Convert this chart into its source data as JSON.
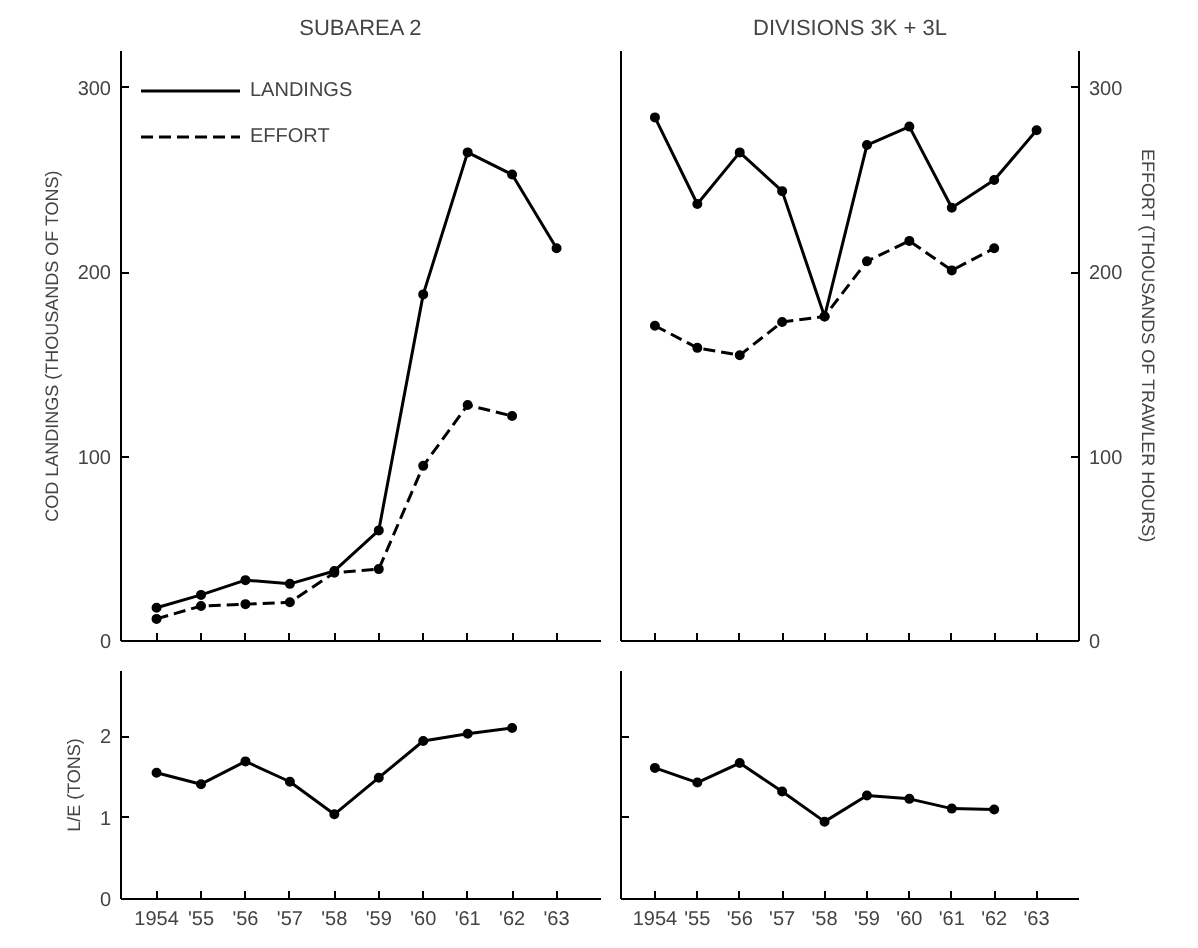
{
  "chart_data": [
    {
      "type": "line",
      "title": "SUBAREA 2",
      "ylabel": "COD LANDINGS (THOUSANDS OF TONS)",
      "categories": [
        null,
        null,
        null,
        null,
        null,
        null,
        null,
        null,
        null,
        null
      ],
      "series": [
        {
          "name": "LANDINGS",
          "color": "#000000",
          "line_style": "solid",
          "values": [
            18,
            25,
            33,
            31,
            38,
            60,
            188,
            265,
            253,
            213
          ]
        },
        {
          "name": "EFFORT",
          "color": "#000000",
          "line_style": "dashed",
          "values": [
            12,
            19,
            20,
            21,
            37,
            39,
            95,
            128,
            122,
            null
          ]
        }
      ],
      "ylim": [
        0,
        320
      ],
      "yticks": [
        0,
        100,
        200,
        300
      ],
      "tick_labels": "y",
      "marker": "circle",
      "grid": false,
      "legend": "top left"
    },
    {
      "type": "line",
      "title": "DIVISIONS 3K + 3L",
      "ylabel": "EFFORT (THOUSANDS OF TRAWLER HOURS)",
      "categories": [
        null,
        null,
        null,
        null,
        null,
        null,
        null,
        null,
        null,
        null
      ],
      "series": [
        {
          "color": "#000000",
          "line_style": "solid",
          "values": [
            284,
            237,
            265,
            244,
            176,
            269,
            279,
            235,
            250,
            277
          ]
        },
        {
          "color": "#000000",
          "line_style": "dashed",
          "values": [
            171,
            159,
            155,
            173,
            176,
            206,
            217,
            201,
            213,
            null
          ]
        }
      ],
      "ylim": [
        0,
        320
      ],
      "yticks": [
        0,
        100,
        200,
        300
      ],
      "tick_labels": "y",
      "marker": "circle",
      "grid": false
    },
    {
      "type": "line",
      "ylabel": "L/E (TONS)",
      "x": [
        1954,
        1955,
        1956,
        1957,
        1958,
        1959,
        1960,
        1961,
        1962
      ],
      "series": [
        {
          "color": "#000000",
          "line_style": "solid",
          "values": [
            1.55,
            1.41,
            1.69,
            1.44,
            1.04,
            1.49,
            1.94,
            2.03,
            2.1
          ]
        }
      ],
      "xlim": [
        1953.2,
        1964
      ],
      "ylim": [
        0,
        2.8
      ],
      "yticks": [
        0,
        1,
        2
      ],
      "xticks": [
        {
          "value": 1954,
          "label": "1954"
        },
        {
          "value": 1955,
          "label": "'55"
        },
        {
          "value": 1956,
          "label": "'56"
        },
        {
          "value": 1957,
          "label": "'57"
        },
        {
          "value": 1958,
          "label": "'58"
        },
        {
          "value": 1959,
          "label": "'59"
        },
        {
          "value": 1960,
          "label": "'60"
        },
        {
          "value": 1961,
          "label": "'61"
        },
        {
          "value": 1962,
          "label": "'62"
        },
        {
          "value": 1963,
          "label": "'63"
        }
      ],
      "marker": "circle",
      "grid": false
    },
    {
      "type": "line",
      "x": [
        1954,
        1955,
        1956,
        1957,
        1958,
        1959,
        1960,
        1961,
        1962
      ],
      "series": [
        {
          "color": "#000000",
          "line_style": "solid",
          "values": [
            1.61,
            1.43,
            1.67,
            1.32,
            0.95,
            1.27,
            1.23,
            1.11,
            1.1
          ]
        }
      ],
      "xlim": [
        1953.2,
        1964
      ],
      "ylim": [
        0,
        2.8
      ],
      "yticks": [
        0,
        1,
        2
      ],
      "xticks": [
        {
          "value": 1954,
          "label": "1954"
        },
        {
          "value": 1955,
          "label": "'55"
        },
        {
          "value": 1956,
          "label": "'56"
        },
        {
          "value": 1957,
          "label": "'57"
        },
        {
          "value": 1958,
          "label": "'58"
        },
        {
          "value": 1959,
          "label": "'59"
        },
        {
          "value": 1960,
          "label": "'60"
        },
        {
          "value": 1961,
          "label": "'61"
        },
        {
          "value": 1962,
          "label": "'62"
        },
        {
          "value": 1963,
          "label": "'63"
        }
      ],
      "tick_labels": "x",
      "marker": "circle",
      "grid": false
    }
  ]
}
